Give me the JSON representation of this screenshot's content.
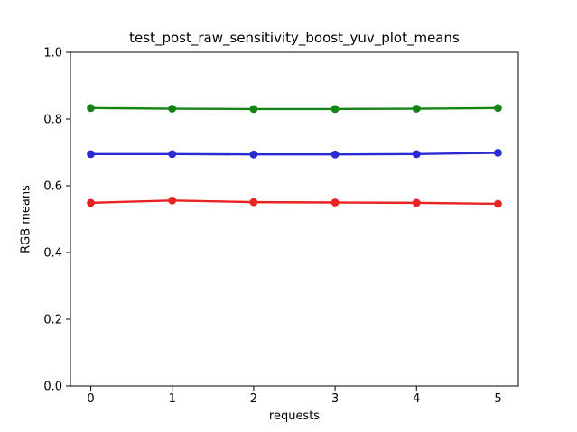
{
  "chart_data": {
    "type": "line",
    "title": "test_post_raw_sensitivity_boost_yuv_plot_means",
    "xlabel": "requests",
    "ylabel": "RGB means",
    "x": [
      0,
      1,
      2,
      3,
      4,
      5
    ],
    "series": [
      {
        "name": "green",
        "color": "#148314",
        "values": [
          0.833,
          0.831,
          0.83,
          0.83,
          0.831,
          0.833
        ]
      },
      {
        "name": "blue",
        "color": "#2b2bd5",
        "values": [
          0.695,
          0.695,
          0.694,
          0.694,
          0.695,
          0.699
        ]
      },
      {
        "name": "red",
        "color": "#e92321",
        "values": [
          0.549,
          0.556,
          0.551,
          0.55,
          0.549,
          0.546
        ]
      }
    ],
    "xlim": [
      -0.25,
      5.25
    ],
    "ylim": [
      0.0,
      1.0
    ],
    "xticks": [
      0,
      1,
      2,
      3,
      4,
      5
    ],
    "yticks": [
      0.0,
      0.2,
      0.4,
      0.6,
      0.8,
      1.0
    ],
    "grid": false,
    "legend": "none",
    "marker": "circle",
    "background_color": "#ffffff",
    "axis_color": "#000000"
  }
}
